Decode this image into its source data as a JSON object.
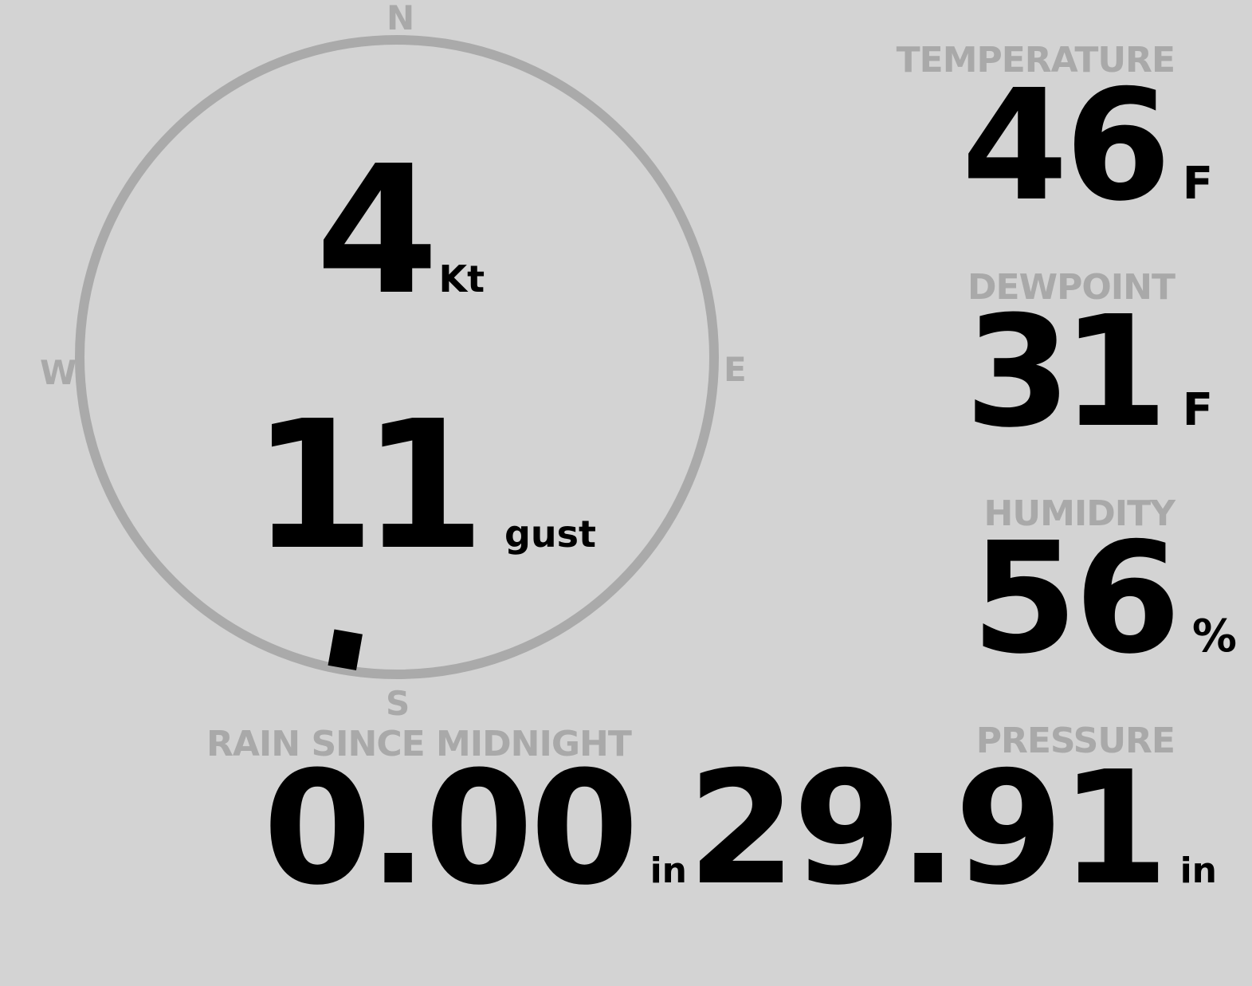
{
  "colors": {
    "background": "#d3d3d3",
    "label": "#a9a9a9",
    "value": "#000000",
    "ring": "#aaaaaa"
  },
  "compass": {
    "north": "N",
    "south": "S",
    "east": "E",
    "west": "W",
    "wind_direction_deg": 190
  },
  "wind": {
    "speed": "4",
    "speed_unit": "Kt",
    "gust": "11",
    "gust_unit": "gust"
  },
  "temperature": {
    "label": "TEMPERATURE",
    "value": "46",
    "unit": "F"
  },
  "dewpoint": {
    "label": "DEWPOINT",
    "value": "31",
    "unit": "F"
  },
  "humidity": {
    "label": "HUMIDITY",
    "value": "56",
    "unit": "%"
  },
  "rain": {
    "label": "RAIN SINCE MIDNIGHT",
    "value": "0.00",
    "unit": "in"
  },
  "pressure": {
    "label": "PRESSURE",
    "value": "29.91",
    "unit": "in"
  }
}
